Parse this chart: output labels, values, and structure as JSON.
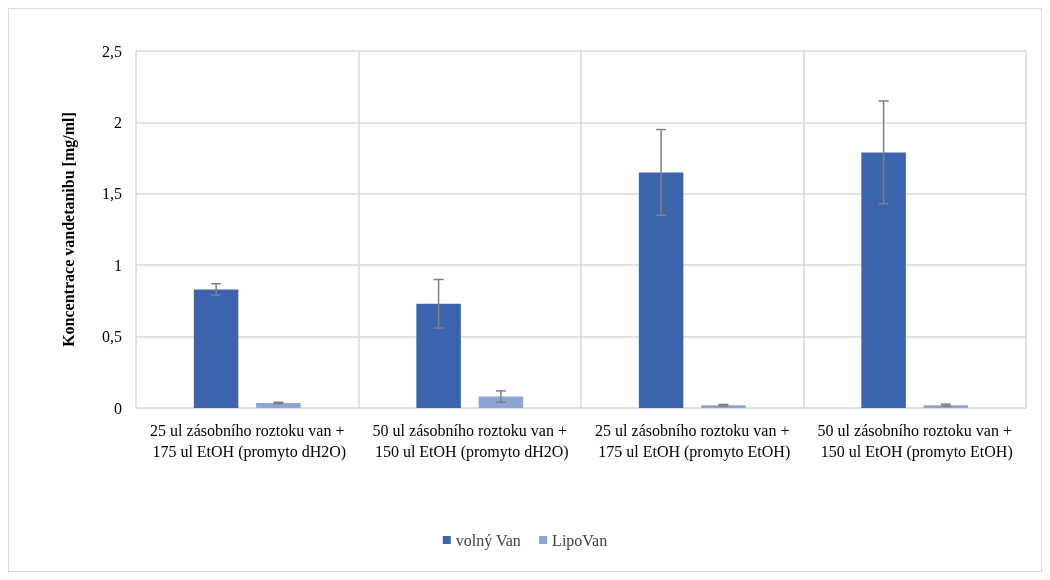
{
  "chart_data": {
    "type": "bar",
    "ylabel": "Koncentrace vandetanibu [mg/ml]",
    "categories": [
      "25 ul zásobního roztoku van + 175 ul EtOH (promyto dH2O)",
      "50 ul zásobního roztoku van + 150 ul EtOH (promyto dH2O)",
      "25 ul zásobního roztoku van + 175 ul EtOH (promyto EtOH)",
      "50 ul zásobního roztoku van + 150 ul EtOH (promyto EtOH)"
    ],
    "series": [
      {
        "name": "volný Van",
        "color": "#3c64ad",
        "values": [
          0.83,
          0.73,
          1.65,
          1.79
        ],
        "errors": [
          0.04,
          0.17,
          0.3,
          0.36
        ]
      },
      {
        "name": "LipoVan",
        "color": "#8ea4d6",
        "values": [
          0.035,
          0.08,
          0.02,
          0.02
        ],
        "errors": [
          0.005,
          0.04,
          0.005,
          0.007
        ]
      }
    ],
    "ylim": [
      0,
      2.5
    ],
    "yticks": [
      0,
      {
        "value": 0.5,
        "label": "0,5"
      },
      1,
      {
        "value": 1.5,
        "label": "1,5"
      },
      2,
      {
        "value": 2.5,
        "label": "2,5"
      }
    ],
    "grid": true,
    "legend": "bottom"
  }
}
